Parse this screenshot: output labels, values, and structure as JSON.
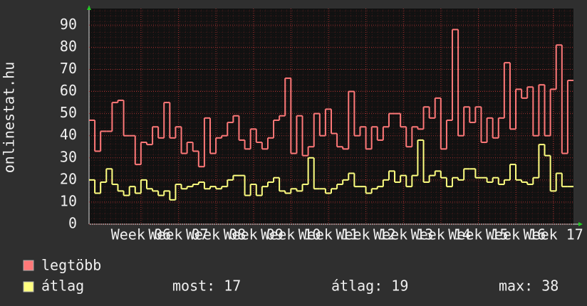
{
  "chart_data": {
    "type": "line",
    "step": true,
    "y_label": "onlinestat.hu",
    "xlim": [
      0,
      84
    ],
    "xticks": [
      {
        "value": 9,
        "label": "Week 06"
      },
      {
        "value": 15.5,
        "label": "Week 07"
      },
      {
        "value": 22,
        "label": "Week 08"
      },
      {
        "value": 28.5,
        "label": "Week 09"
      },
      {
        "value": 35,
        "label": "Week 10"
      },
      {
        "value": 41.5,
        "label": "Week 11"
      },
      {
        "value": 48,
        "label": "Week 12"
      },
      {
        "value": 54.5,
        "label": "Week 13"
      },
      {
        "value": 61,
        "label": "Week 14"
      },
      {
        "value": 67.5,
        "label": "Week 15"
      },
      {
        "value": 74,
        "label": "Week 16"
      },
      {
        "value": 80.5,
        "label": "Week 17"
      }
    ],
    "ylim": [
      0,
      97.5
    ],
    "yticks": [
      0,
      10,
      20,
      30,
      40,
      50,
      60,
      70,
      80,
      90
    ],
    "grid": true,
    "series": [
      {
        "name": "legtöbb",
        "color": "#ff7878",
        "values": [
          47,
          33,
          42,
          42,
          55,
          56,
          40,
          40,
          27,
          37,
          36,
          44,
          39,
          55,
          39,
          44,
          32,
          37,
          33,
          26,
          48,
          32,
          39,
          40,
          46,
          49,
          38,
          34,
          43,
          37,
          34,
          39,
          47,
          49,
          66,
          32,
          49,
          31,
          35,
          50,
          40,
          52,
          41,
          35,
          34,
          60,
          40,
          44,
          34,
          44,
          38,
          44,
          50,
          50,
          44,
          35,
          44,
          43,
          53,
          48,
          57,
          34,
          47,
          88,
          40,
          53,
          46,
          53,
          37,
          48,
          39,
          48,
          73,
          43,
          61,
          57,
          62,
          40,
          63,
          40,
          61,
          81,
          32,
          65
        ]
      },
      {
        "name": "átlag",
        "color": "#ffff80",
        "values": [
          20,
          14,
          19,
          25,
          18,
          15,
          13,
          17,
          14,
          20,
          16,
          15,
          13,
          15,
          11,
          18,
          16,
          17,
          18,
          19,
          16,
          17,
          16,
          17,
          20,
          22,
          22,
          13,
          18,
          13,
          17,
          19,
          21,
          15,
          14,
          16,
          15,
          18,
          30,
          16,
          16,
          14,
          16,
          18,
          20,
          23,
          17,
          17,
          14,
          16,
          17,
          20,
          24,
          19,
          22,
          17,
          22,
          38,
          19,
          22,
          24,
          21,
          17,
          21,
          20,
          25,
          25,
          21,
          21,
          19,
          21,
          18,
          20,
          27,
          20,
          19,
          18,
          21,
          36,
          31,
          15,
          23,
          17,
          17
        ],
        "stats": [
          "most: 17",
          "átlag: 19",
          "max: 38"
        ]
      }
    ]
  }
}
